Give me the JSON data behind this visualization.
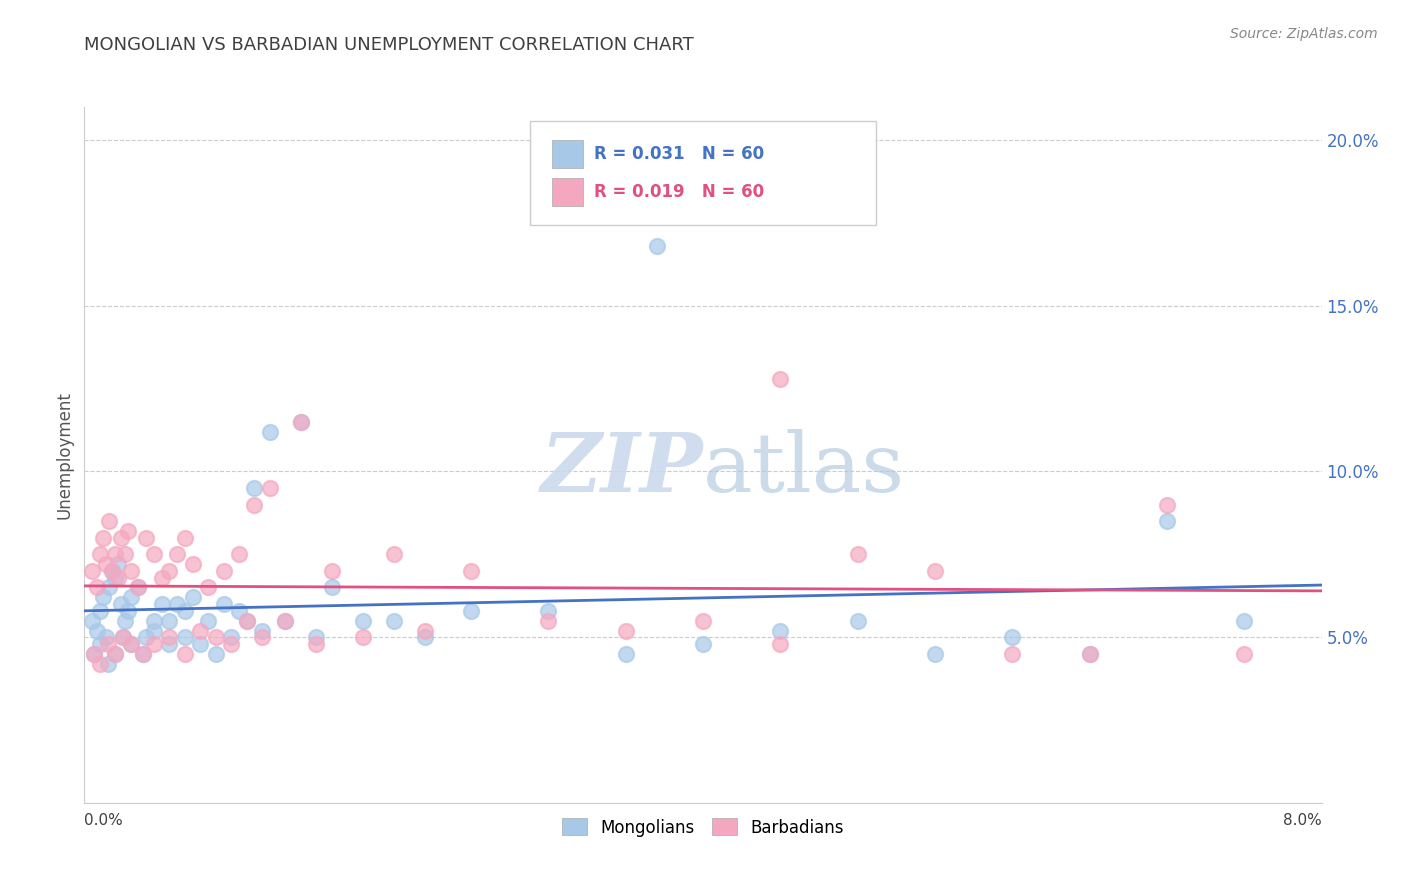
{
  "title": "MONGOLIAN VS BARBADIAN UNEMPLOYMENT CORRELATION CHART",
  "source": "Source: ZipAtlas.com",
  "ylabel": "Unemployment",
  "legend_mongolians": "Mongolians",
  "legend_barbadians": "Barbadians",
  "r_mongolian": "0.031",
  "n_mongolian": "60",
  "r_barbadian": "0.019",
  "n_barbadian": "60",
  "mongolian_scatter_color": "#a8c8e8",
  "barbadian_scatter_color": "#f4a8c0",
  "mongolian_line_color": "#4472c4",
  "barbadian_line_color": "#e05080",
  "ytick_color": "#4472c4",
  "watermark_color": "#c8d8ec",
  "xlim": [
    0.0,
    8.0
  ],
  "ylim": [
    0.0,
    21.0
  ],
  "yticks": [
    5.0,
    10.0,
    15.0,
    20.0
  ],
  "mon_seed_x": [
    0.05,
    0.08,
    0.1,
    0.12,
    0.14,
    0.16,
    0.18,
    0.2,
    0.22,
    0.24,
    0.26,
    0.28,
    0.3,
    0.35,
    0.4,
    0.45,
    0.5,
    0.55,
    0.6,
    0.65,
    0.7,
    0.8,
    0.9,
    1.0,
    1.1,
    1.2,
    1.4,
    1.6,
    2.0,
    2.5,
    0.06,
    0.1,
    0.15,
    0.2,
    0.25,
    0.3,
    0.38,
    0.45,
    0.55,
    0.65,
    0.75,
    0.85,
    0.95,
    1.05,
    1.15,
    1.3,
    1.5,
    1.8,
    2.2,
    3.0,
    3.5,
    4.0,
    4.5,
    5.0,
    5.5,
    6.0,
    6.5,
    7.0,
    7.5,
    3.7
  ],
  "mon_seed_y": [
    5.5,
    5.2,
    5.8,
    6.2,
    5.0,
    6.5,
    7.0,
    6.8,
    7.2,
    6.0,
    5.5,
    5.8,
    6.2,
    6.5,
    5.0,
    5.5,
    6.0,
    5.5,
    6.0,
    5.8,
    6.2,
    5.5,
    6.0,
    5.8,
    9.5,
    11.2,
    11.5,
    6.5,
    5.5,
    5.8,
    4.5,
    4.8,
    4.2,
    4.5,
    5.0,
    4.8,
    4.5,
    5.2,
    4.8,
    5.0,
    4.8,
    4.5,
    5.0,
    5.5,
    5.2,
    5.5,
    5.0,
    5.5,
    5.0,
    5.8,
    4.5,
    4.8,
    5.2,
    5.5,
    4.5,
    5.0,
    4.5,
    8.5,
    5.5,
    16.8
  ],
  "bar_seed_x": [
    0.05,
    0.08,
    0.1,
    0.12,
    0.14,
    0.16,
    0.18,
    0.2,
    0.22,
    0.24,
    0.26,
    0.28,
    0.3,
    0.35,
    0.4,
    0.45,
    0.5,
    0.55,
    0.6,
    0.65,
    0.7,
    0.8,
    0.9,
    1.0,
    1.1,
    1.2,
    1.4,
    1.6,
    2.0,
    2.5,
    0.06,
    0.1,
    0.15,
    0.2,
    0.25,
    0.3,
    0.38,
    0.45,
    0.55,
    0.65,
    0.75,
    0.85,
    0.95,
    1.05,
    1.15,
    1.3,
    1.5,
    1.8,
    2.2,
    3.0,
    3.5,
    4.0,
    4.5,
    5.0,
    5.5,
    6.0,
    6.5,
    7.0,
    7.5,
    4.5
  ],
  "bar_seed_y": [
    7.0,
    6.5,
    7.5,
    8.0,
    7.2,
    8.5,
    7.0,
    7.5,
    6.8,
    8.0,
    7.5,
    8.2,
    7.0,
    6.5,
    8.0,
    7.5,
    6.8,
    7.0,
    7.5,
    8.0,
    7.2,
    6.5,
    7.0,
    7.5,
    9.0,
    9.5,
    11.5,
    7.0,
    7.5,
    7.0,
    4.5,
    4.2,
    4.8,
    4.5,
    5.0,
    4.8,
    4.5,
    4.8,
    5.0,
    4.5,
    5.2,
    5.0,
    4.8,
    5.5,
    5.0,
    5.5,
    4.8,
    5.0,
    5.2,
    5.5,
    5.2,
    5.5,
    4.8,
    7.5,
    7.0,
    4.5,
    4.5,
    9.0,
    4.5,
    12.8
  ]
}
